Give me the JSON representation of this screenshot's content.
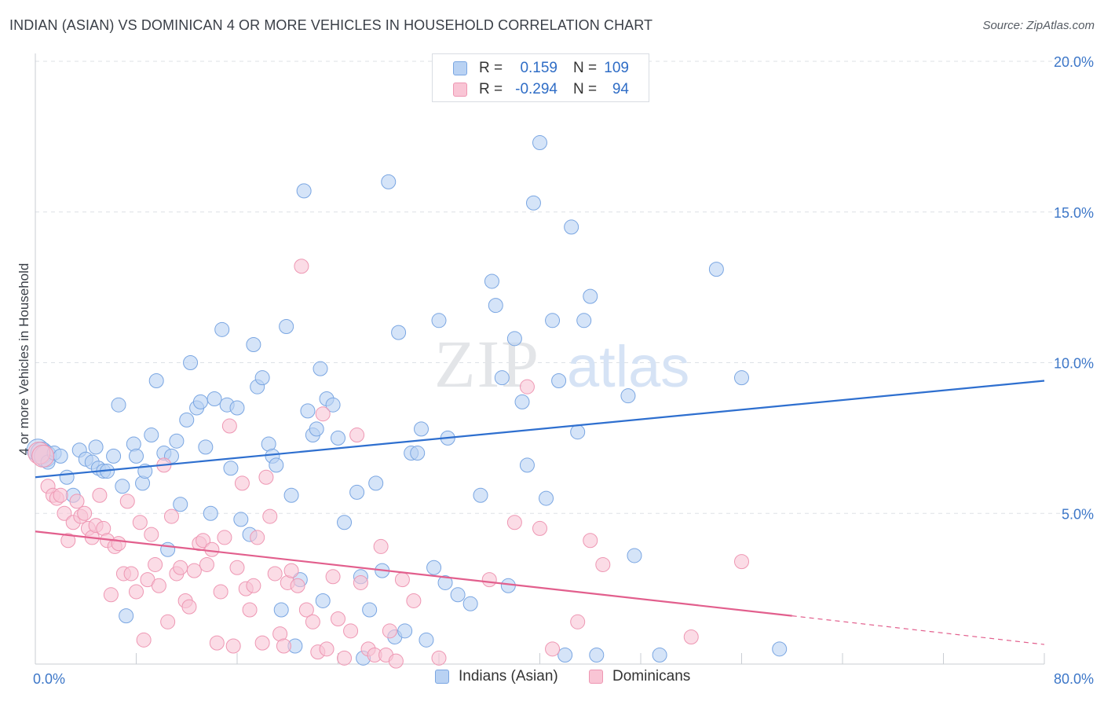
{
  "title": "INDIAN (ASIAN) VS DOMINICAN 4 OR MORE VEHICLES IN HOUSEHOLD CORRELATION CHART",
  "source": "Source: ZipAtlas.com",
  "watermark": {
    "zip": "ZIP",
    "atlas": "atlas"
  },
  "legend": {
    "r_label": "R =",
    "n_label": "N =",
    "rows": [
      {
        "r": "0.159",
        "n": "109",
        "fill": "#b9d2f3",
        "stroke": "#7aa6e2"
      },
      {
        "r": "-0.294",
        "n": "94",
        "fill": "#f9c5d5",
        "stroke": "#ee97b3"
      }
    ]
  },
  "chart_data": {
    "type": "scatter",
    "title": "INDIAN (ASIAN) VS DOMINICAN 4 OR MORE VEHICLES IN HOUSEHOLD CORRELATION CHART",
    "xlabel": "",
    "ylabel": "4 or more Vehicles in Household",
    "xlim": [
      0,
      80
    ],
    "ylim": [
      0,
      20
    ],
    "x_tick_labels": [
      "0.0%",
      "80.0%"
    ],
    "y_ticks": [
      5,
      10,
      15,
      20
    ],
    "y_tick_labels": [
      "5.0%",
      "10.0%",
      "15.0%",
      "20.0%"
    ],
    "grid": "horizontal dashed",
    "legend_position": "top-center",
    "series": [
      {
        "name": "Indians (Asian)",
        "color": "#7aa6e2",
        "fill": "#b9d2f3",
        "trend_color": "#2e6fcf",
        "trend": {
          "x0": 0,
          "y0": 6.2,
          "x1": 80,
          "y1": 9.4
        },
        "points": [
          [
            0.2,
            7.1
          ],
          [
            0.5,
            7.0
          ],
          [
            0.8,
            6.9
          ],
          [
            1.0,
            6.7
          ],
          [
            1.5,
            7.0
          ],
          [
            2.0,
            6.9
          ],
          [
            2.5,
            6.2
          ],
          [
            3.0,
            5.6
          ],
          [
            3.5,
            7.1
          ],
          [
            4.0,
            6.8
          ],
          [
            4.5,
            6.7
          ],
          [
            4.8,
            7.2
          ],
          [
            5.0,
            6.5
          ],
          [
            5.4,
            6.4
          ],
          [
            5.7,
            6.4
          ],
          [
            6.2,
            6.9
          ],
          [
            6.6,
            8.6
          ],
          [
            6.9,
            5.9
          ],
          [
            7.2,
            1.6
          ],
          [
            7.8,
            7.3
          ],
          [
            8.0,
            6.9
          ],
          [
            8.5,
            6.0
          ],
          [
            8.7,
            6.4
          ],
          [
            9.2,
            7.6
          ],
          [
            9.6,
            9.4
          ],
          [
            10.2,
            7.0
          ],
          [
            10.5,
            3.8
          ],
          [
            10.8,
            6.9
          ],
          [
            11.2,
            7.4
          ],
          [
            11.5,
            5.3
          ],
          [
            12.0,
            8.1
          ],
          [
            12.3,
            10.0
          ],
          [
            12.8,
            8.5
          ],
          [
            13.1,
            8.7
          ],
          [
            13.5,
            7.2
          ],
          [
            13.9,
            5.0
          ],
          [
            14.2,
            8.8
          ],
          [
            14.8,
            11.1
          ],
          [
            15.2,
            8.6
          ],
          [
            15.5,
            6.5
          ],
          [
            16.0,
            8.5
          ],
          [
            16.3,
            4.8
          ],
          [
            17.0,
            4.3
          ],
          [
            17.3,
            10.6
          ],
          [
            17.6,
            9.2
          ],
          [
            18.0,
            9.5
          ],
          [
            18.5,
            7.3
          ],
          [
            18.8,
            6.9
          ],
          [
            19.1,
            6.6
          ],
          [
            19.5,
            1.8
          ],
          [
            19.9,
            11.2
          ],
          [
            20.3,
            5.6
          ],
          [
            20.6,
            0.6
          ],
          [
            21.0,
            2.8
          ],
          [
            21.3,
            15.7
          ],
          [
            21.6,
            8.4
          ],
          [
            22.0,
            7.6
          ],
          [
            22.3,
            7.8
          ],
          [
            22.6,
            9.8
          ],
          [
            22.8,
            2.1
          ],
          [
            23.1,
            8.8
          ],
          [
            23.6,
            8.6
          ],
          [
            24.0,
            7.5
          ],
          [
            24.5,
            4.7
          ],
          [
            25.5,
            5.7
          ],
          [
            25.8,
            2.9
          ],
          [
            26.0,
            0.2
          ],
          [
            26.5,
            1.8
          ],
          [
            27.0,
            6.0
          ],
          [
            27.5,
            3.1
          ],
          [
            28.0,
            16.0
          ],
          [
            28.5,
            0.9
          ],
          [
            28.8,
            11.0
          ],
          [
            29.3,
            1.1
          ],
          [
            29.8,
            7.0
          ],
          [
            30.3,
            7.0
          ],
          [
            30.6,
            7.8
          ],
          [
            31.0,
            0.8
          ],
          [
            31.6,
            3.2
          ],
          [
            32.0,
            11.4
          ],
          [
            32.5,
            2.7
          ],
          [
            32.7,
            7.5
          ],
          [
            33.5,
            2.3
          ],
          [
            34.5,
            2.0
          ],
          [
            35.3,
            5.6
          ],
          [
            36.2,
            12.7
          ],
          [
            36.5,
            11.9
          ],
          [
            37.0,
            9.5
          ],
          [
            37.5,
            2.6
          ],
          [
            38.0,
            10.8
          ],
          [
            38.6,
            8.7
          ],
          [
            39.0,
            6.6
          ],
          [
            39.5,
            15.3
          ],
          [
            40.0,
            17.3
          ],
          [
            40.5,
            5.5
          ],
          [
            41.0,
            11.4
          ],
          [
            41.5,
            9.4
          ],
          [
            42.0,
            0.3
          ],
          [
            42.5,
            14.5
          ],
          [
            43.0,
            7.7
          ],
          [
            43.5,
            11.4
          ],
          [
            44.0,
            12.2
          ],
          [
            44.5,
            0.3
          ],
          [
            47.0,
            8.9
          ],
          [
            47.5,
            3.6
          ],
          [
            49.5,
            0.3
          ],
          [
            54.0,
            13.1
          ],
          [
            56.0,
            9.5
          ],
          [
            59.0,
            0.5
          ]
        ]
      },
      {
        "name": "Dominicans",
        "color": "#ee97b3",
        "fill": "#f9c5d5",
        "trend_color": "#e25f8d",
        "trend": {
          "x0": 0,
          "y0": 4.4,
          "x1": 60,
          "y1": 1.6
        },
        "trend_dashed_to": {
          "x": 80,
          "y": 0.65
        },
        "points": [
          [
            0.3,
            7.0
          ],
          [
            0.6,
            6.9
          ],
          [
            1.0,
            5.9
          ],
          [
            1.4,
            5.6
          ],
          [
            1.7,
            5.5
          ],
          [
            2.0,
            5.6
          ],
          [
            2.3,
            5.0
          ],
          [
            2.6,
            4.1
          ],
          [
            3.0,
            4.7
          ],
          [
            3.3,
            5.4
          ],
          [
            3.6,
            4.9
          ],
          [
            3.9,
            5.0
          ],
          [
            4.2,
            4.5
          ],
          [
            4.5,
            4.2
          ],
          [
            4.8,
            4.6
          ],
          [
            5.1,
            5.6
          ],
          [
            5.4,
            4.5
          ],
          [
            5.7,
            4.1
          ],
          [
            6.0,
            2.3
          ],
          [
            6.3,
            3.9
          ],
          [
            6.6,
            4.0
          ],
          [
            7.0,
            3.0
          ],
          [
            7.3,
            5.4
          ],
          [
            7.6,
            3.0
          ],
          [
            8.0,
            2.4
          ],
          [
            8.3,
            4.7
          ],
          [
            8.6,
            0.8
          ],
          [
            8.9,
            2.8
          ],
          [
            9.2,
            4.3
          ],
          [
            9.5,
            3.3
          ],
          [
            9.8,
            2.6
          ],
          [
            10.2,
            6.6
          ],
          [
            10.5,
            1.4
          ],
          [
            10.8,
            4.9
          ],
          [
            11.2,
            3.0
          ],
          [
            11.5,
            3.2
          ],
          [
            11.9,
            2.1
          ],
          [
            12.2,
            1.9
          ],
          [
            12.6,
            3.1
          ],
          [
            13.0,
            4.0
          ],
          [
            13.3,
            4.1
          ],
          [
            13.6,
            3.3
          ],
          [
            14.0,
            3.8
          ],
          [
            14.4,
            0.7
          ],
          [
            14.7,
            2.4
          ],
          [
            15.0,
            4.2
          ],
          [
            15.4,
            7.9
          ],
          [
            15.7,
            0.6
          ],
          [
            16.0,
            3.2
          ],
          [
            16.4,
            6.0
          ],
          [
            16.7,
            2.5
          ],
          [
            17.0,
            1.8
          ],
          [
            17.3,
            2.6
          ],
          [
            17.6,
            4.2
          ],
          [
            18.0,
            0.7
          ],
          [
            18.3,
            6.2
          ],
          [
            18.6,
            4.9
          ],
          [
            19.0,
            3.0
          ],
          [
            19.4,
            1.0
          ],
          [
            19.7,
            0.6
          ],
          [
            20.0,
            2.7
          ],
          [
            20.3,
            3.1
          ],
          [
            20.8,
            2.6
          ],
          [
            21.1,
            13.2
          ],
          [
            21.5,
            1.8
          ],
          [
            22.0,
            1.4
          ],
          [
            22.4,
            0.4
          ],
          [
            22.8,
            8.3
          ],
          [
            23.1,
            0.5
          ],
          [
            23.6,
            2.9
          ],
          [
            24.0,
            1.5
          ],
          [
            24.5,
            0.2
          ],
          [
            25.0,
            1.1
          ],
          [
            25.5,
            7.6
          ],
          [
            25.8,
            2.7
          ],
          [
            26.4,
            0.5
          ],
          [
            26.9,
            0.3
          ],
          [
            27.4,
            3.9
          ],
          [
            27.8,
            0.3
          ],
          [
            28.1,
            1.1
          ],
          [
            28.6,
            0.1
          ],
          [
            29.1,
            2.8
          ],
          [
            30.0,
            2.1
          ],
          [
            32.0,
            0.2
          ],
          [
            36.0,
            2.8
          ],
          [
            38.0,
            4.7
          ],
          [
            39.0,
            9.2
          ],
          [
            40.0,
            4.5
          ],
          [
            41.0,
            0.5
          ],
          [
            43.0,
            1.4
          ],
          [
            44.0,
            4.1
          ],
          [
            45.0,
            3.3
          ],
          [
            52.0,
            0.9
          ],
          [
            56.0,
            3.4
          ]
        ]
      }
    ]
  }
}
